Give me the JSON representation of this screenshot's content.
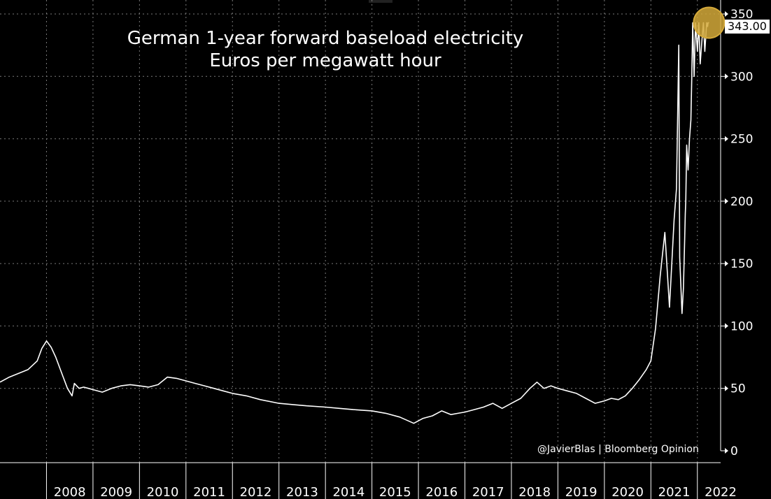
{
  "chart_data": {
    "type": "line",
    "title": "German 1-year forward baseload electricity",
    "subtitle": "Euros per megawatt hour",
    "x_tick_labels": [
      "2008",
      "2009",
      "2010",
      "2011",
      "2012",
      "2013",
      "2014",
      "2015",
      "2016",
      "2017",
      "2018",
      "2019",
      "2020",
      "2021",
      "2022"
    ],
    "y_ticks": [
      0,
      50,
      100,
      150,
      200,
      250,
      300,
      350
    ],
    "ylim": [
      0,
      350
    ],
    "xlim": [
      2007.0,
      2022.5
    ],
    "grid": true,
    "y_axis_position": "right",
    "line_color": "#ffffff",
    "background": "#000000",
    "series": [
      {
        "x": [
          2007.0,
          2007.2,
          2007.4,
          2007.6,
          2007.8,
          2007.9,
          2008.0,
          2008.1,
          2008.2,
          2008.35,
          2008.45,
          2008.55,
          2008.6,
          2008.7,
          2008.8,
          2008.9,
          2009.0,
          2009.2,
          2009.4,
          2009.6,
          2009.8,
          2010.0,
          2010.2,
          2010.4,
          2010.6,
          2010.8,
          2011.0,
          2011.2,
          2011.4,
          2011.6,
          2011.8,
          2012.0,
          2012.3,
          2012.6,
          2013.0,
          2013.3,
          2013.6,
          2014.0,
          2014.3,
          2014.6,
          2015.0,
          2015.3,
          2015.6,
          2015.9,
          2016.1,
          2016.3,
          2016.5,
          2016.7,
          2016.85,
          2017.0,
          2017.2,
          2017.4,
          2017.6,
          2017.8,
          2018.0,
          2018.2,
          2018.4,
          2018.55,
          2018.7,
          2018.85,
          2019.0,
          2019.2,
          2019.4,
          2019.6,
          2019.8,
          2020.0,
          2020.15,
          2020.3,
          2020.45,
          2020.6,
          2020.75,
          2020.9,
          2021.0,
          2021.1,
          2021.2,
          2021.3,
          2021.4,
          2021.5,
          2021.55,
          2021.6,
          2021.62,
          2021.67,
          2021.7,
          2021.72,
          2021.74,
          2021.75,
          2021.77,
          2021.8,
          2021.83,
          2021.86,
          2021.88,
          2021.9,
          2021.93,
          2021.96,
          2022.0,
          2022.03,
          2022.06,
          2022.1,
          2022.13,
          2022.16,
          2022.2,
          2022.22,
          2022.23,
          2022.25
        ],
        "y": [
          55,
          59,
          62,
          65,
          72,
          82,
          88,
          83,
          75,
          60,
          50,
          44,
          54,
          50,
          51,
          50,
          49,
          47,
          50,
          52,
          53,
          52,
          51,
          53,
          59,
          58,
          56,
          54,
          52,
          50,
          48,
          46,
          44,
          41,
          38,
          37,
          36,
          35,
          34,
          33,
          32,
          30,
          27,
          22,
          26,
          28,
          32,
          29,
          30,
          31,
          33,
          35,
          38,
          34,
          38,
          42,
          50,
          55,
          50,
          52,
          50,
          48,
          46,
          42,
          38,
          40,
          42,
          41,
          44,
          50,
          57,
          65,
          72,
          98,
          140,
          175,
          115,
          185,
          210,
          325,
          155,
          110,
          130,
          160,
          190,
          200,
          245,
          225,
          250,
          265,
          300,
          343,
          300,
          343,
          320,
          343,
          310,
          330,
          343,
          320,
          343,
          340,
          343,
          343
        ]
      }
    ],
    "last_value_label": "343.00",
    "highlight_marker": {
      "x": 2022.25,
      "y": 343,
      "color": "#d4a93a"
    },
    "credit": "@JavierBlas | Bloomberg Opinion"
  }
}
